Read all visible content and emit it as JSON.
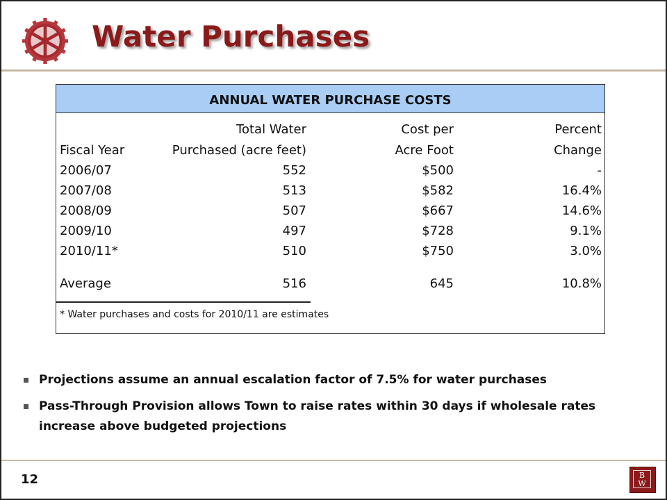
{
  "title": "Water Purchases",
  "table": {
    "title": "ANNUAL WATER PURCHASE COSTS",
    "headers": {
      "col1": [
        "",
        "Fiscal Year"
      ],
      "col2": [
        "Total Water",
        "Purchased (acre feet)"
      ],
      "col3": [
        "Cost per",
        "Acre Foot"
      ],
      "col4": [
        "Percent",
        "Change"
      ]
    },
    "rows": [
      [
        "2006/07",
        "552",
        "$500",
        "-"
      ],
      [
        "2007/08",
        "513",
        "$582",
        "16.4%"
      ],
      [
        "2008/09",
        "507",
        "$667",
        "14.6%"
      ],
      [
        "2009/10",
        "497",
        "$728",
        "9.1%"
      ],
      [
        "2010/11*",
        "510",
        "$750",
        "3.0%"
      ]
    ],
    "average": [
      "Average",
      "516",
      "645",
      "10.8%"
    ],
    "footnote": "* Water purchases and costs for 2010/11 are estimates"
  },
  "bullets": [
    "Projections assume an annual escalation factor of 7.5% for water purchases",
    "Pass-Through Provision allows Town to raise rates within 30 days if wholesale rates increase above budgeted projections"
  ],
  "page_number": "12",
  "logo_letters": [
    "B",
    "W"
  ],
  "colors": {
    "title": "#8b1a1a",
    "table_header_bg": "#a9cdf5",
    "rule": "#c9b9a4"
  }
}
